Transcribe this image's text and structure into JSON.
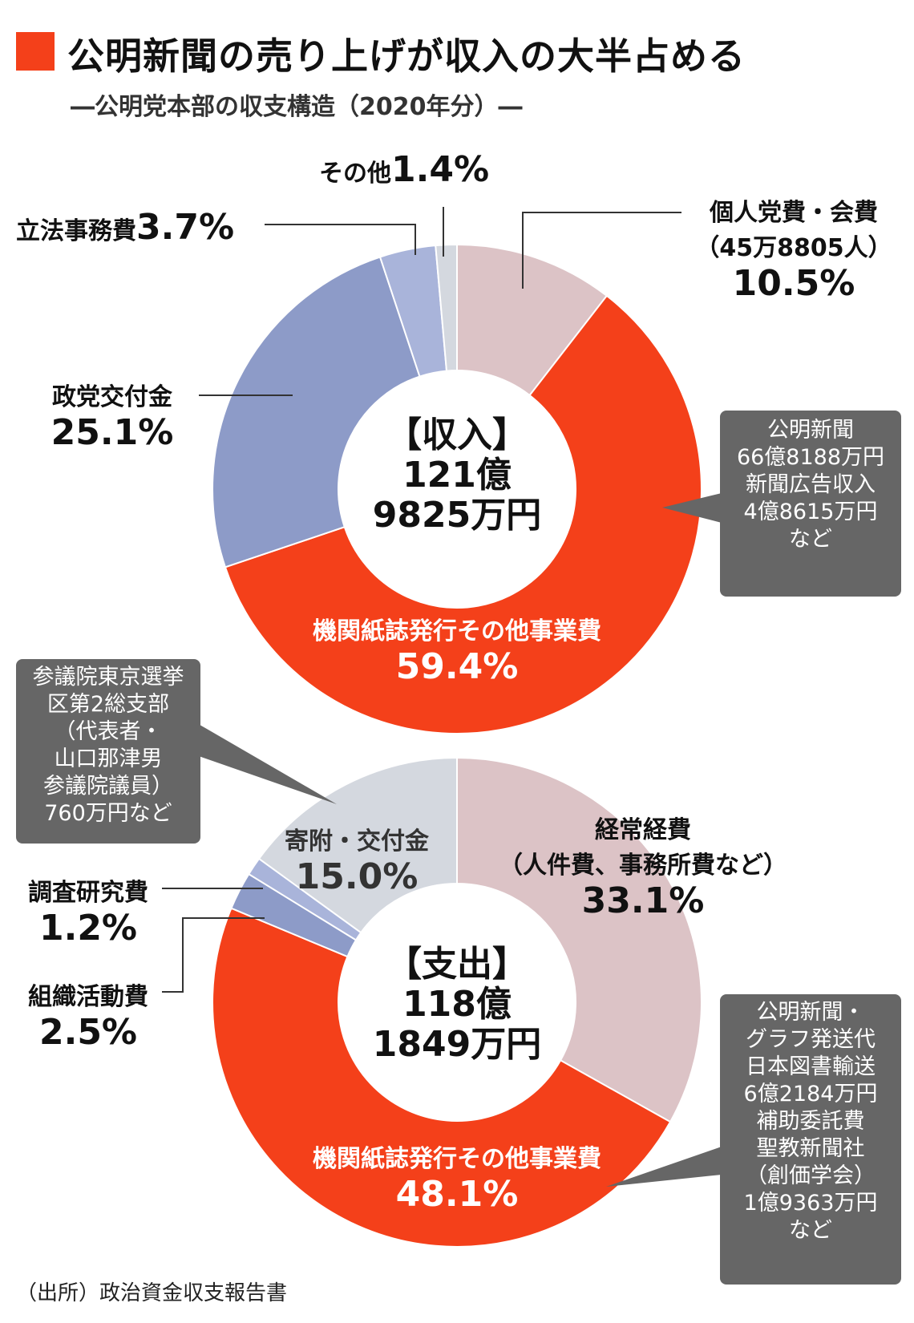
{
  "title": "公明新聞の売り上げが収入の大半占める",
  "subtitle": "―公明党本部の収支構造（2020年分）―",
  "source": "（出所）政治資金収支報告書",
  "colors": {
    "accent": "#f4401a",
    "pink": "#dcc3c6",
    "blue": "#8d9bc8",
    "lightblue": "#a9b4da",
    "gray": "#d4d8df",
    "callout": "#666666"
  },
  "chart_data": [
    {
      "type": "pie",
      "title": "【収入】",
      "total_line1": "121億",
      "total_line2": "9825万円",
      "slices": [
        {
          "name": "個人党費・会費",
          "sub": "（45万8805人）",
          "pct_label": "10.5%",
          "value": 10.5,
          "color": "#dcc3c6"
        },
        {
          "name": "機関紙誌発行その他事業費",
          "pct_label": "59.4%",
          "value": 59.4,
          "color": "#f4401a"
        },
        {
          "name": "政党交付金",
          "pct_label": "25.1%",
          "value": 25.1,
          "color": "#8d9bc8"
        },
        {
          "name": "立法事務費",
          "pct_label": "3.7%",
          "value": 3.7,
          "color": "#a9b4da"
        },
        {
          "name": "その他",
          "pct_label": "1.4%",
          "value": 1.4,
          "color": "#d4d8df"
        }
      ],
      "callout": [
        "公明新聞",
        "66億8188万円",
        "新聞広告収入",
        "4億8615万円",
        "など"
      ]
    },
    {
      "type": "pie",
      "title": "【支出】",
      "total_line1": "118億",
      "total_line2": "1849万円",
      "slices": [
        {
          "name": "経常経費",
          "sub": "（人件費、事務所費など）",
          "pct_label": "33.1%",
          "value": 33.1,
          "color": "#dcc3c6"
        },
        {
          "name": "機関紙誌発行その他事業費",
          "pct_label": "48.1%",
          "value": 48.1,
          "color": "#f4401a"
        },
        {
          "name": "組織活動費",
          "pct_label": "2.5%",
          "value": 2.5,
          "color": "#8d9bc8"
        },
        {
          "name": "調査研究費",
          "pct_label": "1.2%",
          "value": 1.2,
          "color": "#a9b4da"
        },
        {
          "name": "寄附・交付金",
          "pct_label": "15.0%",
          "value": 15.0,
          "color": "#d4d8df"
        }
      ],
      "callout": [
        "公明新聞・",
        "グラフ発送代",
        "日本図書輸送",
        "6億2184万円",
        "補助委託費",
        "聖教新聞社",
        "（創価学会）",
        "1億9363万円",
        "など"
      ],
      "callout2": [
        "参議院東京選挙",
        "区第2総支部",
        "（代表者・",
        "山口那津男",
        "参議院議員）",
        "760万円など"
      ]
    }
  ]
}
